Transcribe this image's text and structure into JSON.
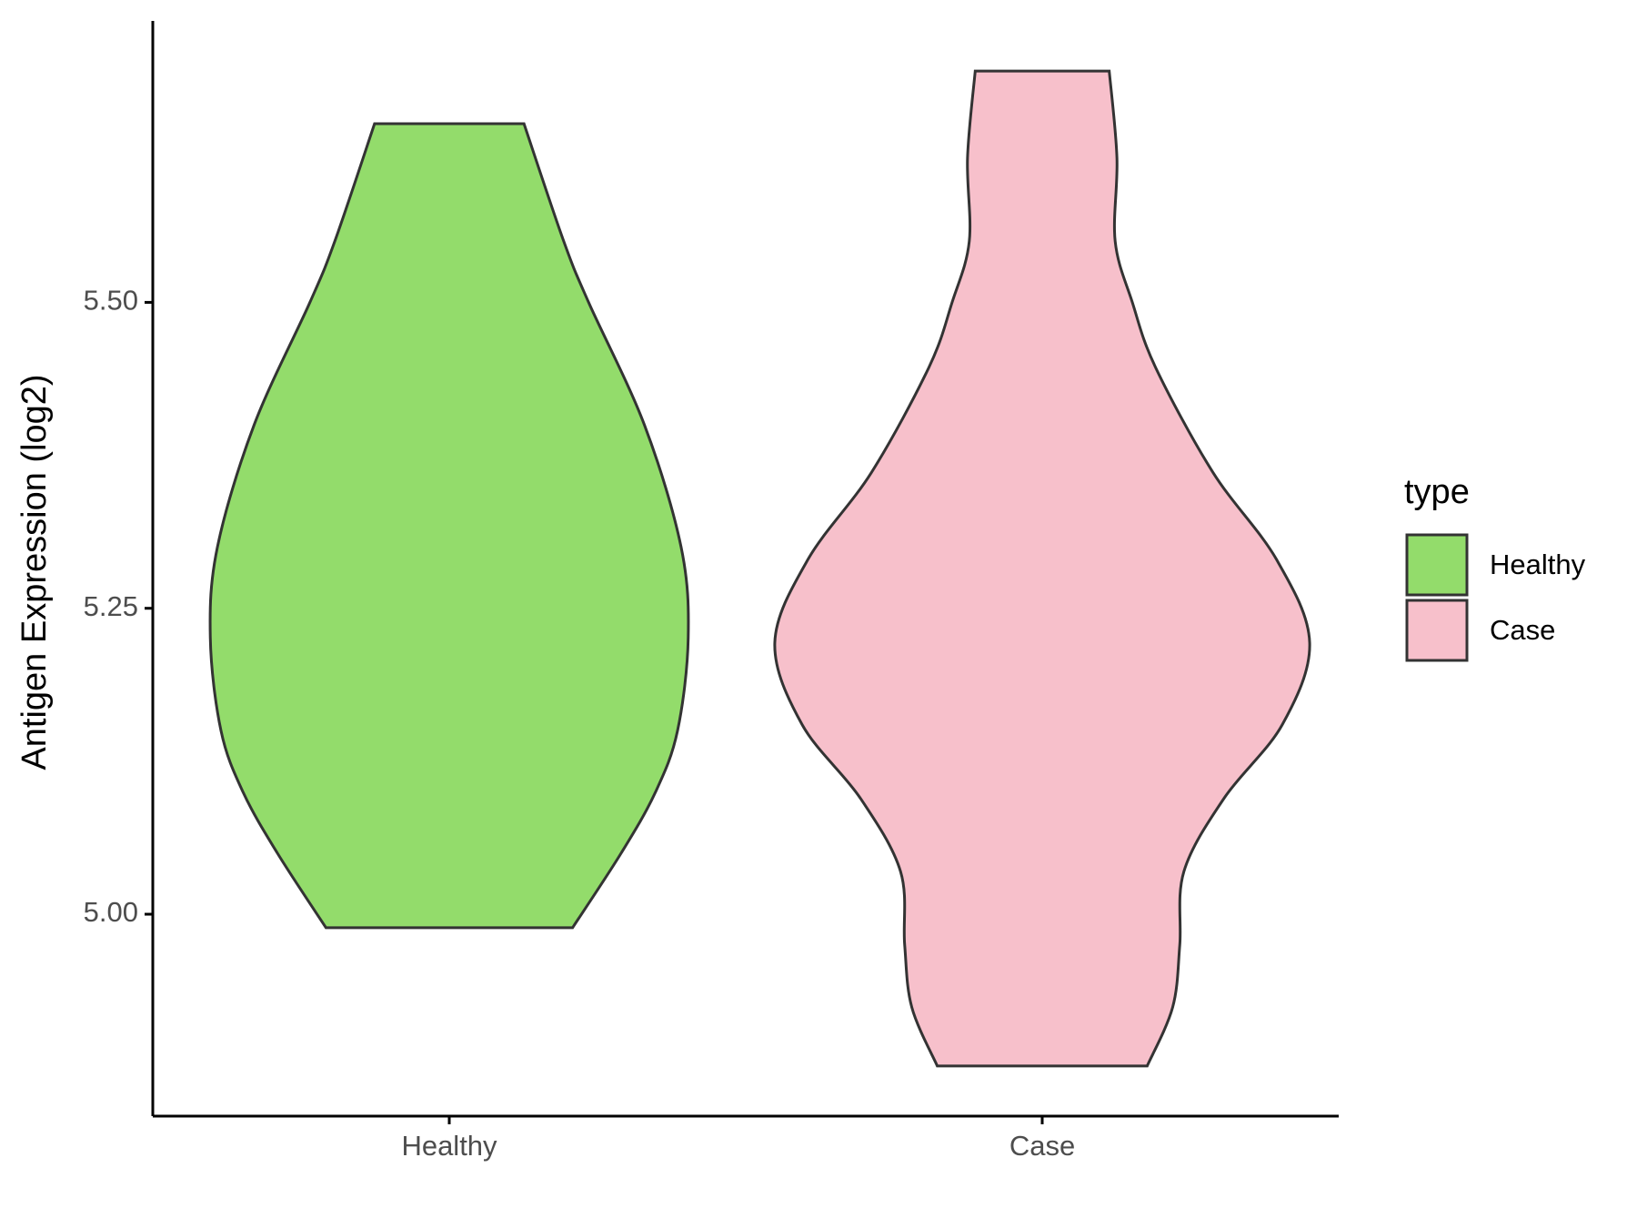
{
  "chart_data": {
    "type": "violin",
    "ylabel": "Antigen Expression (log2)",
    "categories": [
      "Healthy",
      "Case"
    ],
    "ylim": [
      4.835,
      5.73
    ],
    "yticks": [
      {
        "value": 5,
        "label": "5.00"
      },
      5.25,
      {
        "value": 5.5,
        "label": "5.50"
      }
    ],
    "legend_title": "type",
    "legend": "right",
    "series": [
      {
        "name": "Healthy",
        "color": "#93dc6b",
        "y": [
          5.646,
          5.55,
          5.5,
          5.4,
          5.3,
          5.226,
          5.15,
          5.1,
          5.05,
          4.989
        ],
        "width": [
          0.126,
          0.193,
          0.235,
          0.329,
          0.391,
          0.403,
          0.385,
          0.348,
          0.29,
          0.208
        ]
      },
      {
        "name": "Case",
        "color": "#f7c0cb",
        "y": [
          5.689,
          5.618,
          5.55,
          5.5,
          5.447,
          5.361,
          5.29,
          5.222,
          5.155,
          5.095,
          5.035,
          4.975,
          4.924,
          4.876
        ],
        "width": [
          0.113,
          0.126,
          0.123,
          0.152,
          0.191,
          0.288,
          0.395,
          0.451,
          0.405,
          0.307,
          0.239,
          0.232,
          0.22,
          0.177
        ]
      }
    ]
  }
}
